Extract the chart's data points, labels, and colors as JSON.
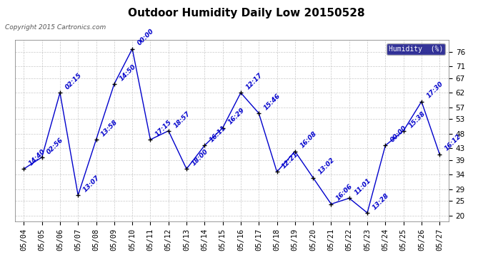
{
  "title": "Outdoor Humidity Daily Low 20150528",
  "copyright_text": "Copyright 2015 Cartronics.com",
  "legend_label": "Humidity  (%)",
  "background_color": "#ffffff",
  "plot_bg_color": "#ffffff",
  "line_color": "#0000cc",
  "marker_color": "#000000",
  "grid_color": "#bbbbbb",
  "x_labels": [
    "05/04",
    "05/05",
    "05/06",
    "05/07",
    "05/08",
    "05/09",
    "05/10",
    "05/11",
    "05/12",
    "05/13",
    "05/14",
    "05/15",
    "05/16",
    "05/17",
    "05/18",
    "05/19",
    "05/20",
    "05/21",
    "05/22",
    "05/23",
    "05/24",
    "05/25",
    "05/26",
    "05/27"
  ],
  "y_values": [
    36,
    40,
    62,
    27,
    46,
    65,
    77,
    46,
    49,
    36,
    44,
    50,
    62,
    55,
    35,
    42,
    33,
    24,
    26,
    21,
    44,
    49,
    59,
    41
  ],
  "point_labels": [
    "14:40",
    "02:56",
    "02:15",
    "13:07",
    "13:58",
    "14:50",
    "00:00",
    "17:15",
    "18:57",
    "18:00",
    "16:11",
    "16:29",
    "12:17",
    "15:46",
    "12:21",
    "16:08",
    "13:02",
    "16:06",
    "11:01",
    "13:28",
    "00:00",
    "15:38",
    "17:30",
    "16:12"
  ],
  "ylim_min": 18,
  "ylim_max": 80,
  "yticks": [
    20,
    25,
    29,
    34,
    39,
    43,
    48,
    53,
    57,
    62,
    67,
    71,
    76
  ],
  "title_fontsize": 11,
  "tick_fontsize": 7.5,
  "point_label_fontsize": 6.5,
  "legend_bg_color": "#000080",
  "legend_text_color": "#ffffff"
}
